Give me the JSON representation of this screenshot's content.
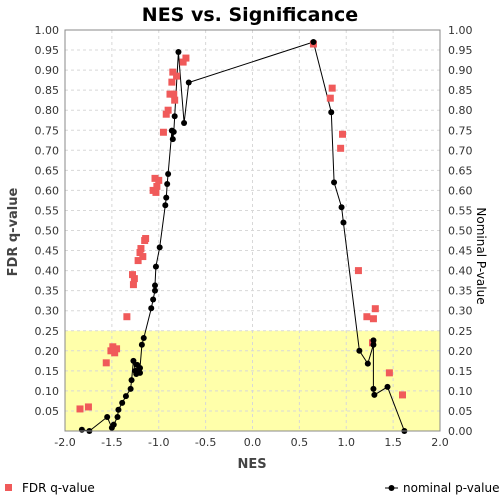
{
  "chart_data": {
    "type": "scatter",
    "title": "NES vs. Significance",
    "xlabel": "NES",
    "ylabel": "FDR q-value",
    "y2label": "Nominal P-value",
    "xlim": [
      -2.0,
      2.0
    ],
    "ylim": [
      0.0,
      1.0
    ],
    "x_ticks": [
      "-2.0",
      "-1.5",
      "-1.0",
      "-0.5",
      "0.0",
      "0.5",
      "1.0",
      "1.5",
      "2.0"
    ],
    "y_ticks": [
      "0.05",
      "0.10",
      "0.15",
      "0.20",
      "0.25",
      "0.30",
      "0.35",
      "0.40",
      "0.45",
      "0.50",
      "0.55",
      "0.60",
      "0.65",
      "0.70",
      "0.75",
      "0.80",
      "0.85",
      "0.90",
      "0.95",
      "1.00"
    ],
    "y2_ticks": [
      "0.00",
      "0.05",
      "0.10",
      "0.15",
      "0.20",
      "0.25",
      "0.30",
      "0.35",
      "0.40",
      "0.45",
      "0.50",
      "0.55",
      "0.60",
      "0.65",
      "0.70",
      "0.75",
      "0.80",
      "0.85",
      "0.90",
      "0.95",
      "1.00"
    ],
    "highlight_band": {
      "ymin": 0.0,
      "ymax": 0.25,
      "color": "#ffffaa"
    },
    "grid": true,
    "legend_position": "bottom",
    "series": [
      {
        "name": "FDR q-value",
        "color": "#f05a5a",
        "marker": "square",
        "points": [
          [
            -1.84,
            0.055
          ],
          [
            -1.75,
            0.06
          ],
          [
            -1.56,
            0.17
          ],
          [
            -1.51,
            0.2
          ],
          [
            -1.49,
            0.21
          ],
          [
            -1.47,
            0.195
          ],
          [
            -1.45,
            0.205
          ],
          [
            -1.34,
            0.285
          ],
          [
            -1.28,
            0.39
          ],
          [
            -1.27,
            0.365
          ],
          [
            -1.26,
            0.38
          ],
          [
            -1.22,
            0.425
          ],
          [
            -1.2,
            0.445
          ],
          [
            -1.19,
            0.455
          ],
          [
            -1.17,
            0.435
          ],
          [
            -1.15,
            0.475
          ],
          [
            -1.14,
            0.48
          ],
          [
            -1.06,
            0.6
          ],
          [
            -1.04,
            0.63
          ],
          [
            -1.03,
            0.595
          ],
          [
            -1.02,
            0.61
          ],
          [
            -1.0,
            0.625
          ],
          [
            -0.95,
            0.745
          ],
          [
            -0.92,
            0.79
          ],
          [
            -0.9,
            0.8
          ],
          [
            -0.88,
            0.84
          ],
          [
            -0.86,
            0.87
          ],
          [
            -0.85,
            0.895
          ],
          [
            -0.84,
            0.84
          ],
          [
            -0.83,
            0.825
          ],
          [
            -0.81,
            0.885
          ],
          [
            -0.74,
            0.92
          ],
          [
            -0.71,
            0.93
          ],
          [
            0.65,
            0.965
          ],
          [
            0.83,
            0.83
          ],
          [
            0.85,
            0.855
          ],
          [
            0.94,
            0.705
          ],
          [
            0.96,
            0.74
          ],
          [
            1.13,
            0.4
          ],
          [
            1.22,
            0.285
          ],
          [
            1.28,
            0.22
          ],
          [
            1.29,
            0.28
          ],
          [
            1.31,
            0.305
          ],
          [
            1.46,
            0.145
          ],
          [
            1.6,
            0.09
          ]
        ]
      },
      {
        "name": "nominal p-value",
        "color": "#000000",
        "marker": "circle",
        "points": [
          [
            -1.82,
            0.003
          ],
          [
            -1.74,
            0.0
          ],
          [
            -1.55,
            0.035
          ],
          [
            -1.5,
            0.008
          ],
          [
            -1.48,
            0.016
          ],
          [
            -1.44,
            0.035
          ],
          [
            -1.43,
            0.053
          ],
          [
            -1.39,
            0.07
          ],
          [
            -1.35,
            0.087
          ],
          [
            -1.3,
            0.105
          ],
          [
            -1.29,
            0.127
          ],
          [
            -1.27,
            0.175
          ],
          [
            -1.25,
            0.15
          ],
          [
            -1.24,
            0.142
          ],
          [
            -1.23,
            0.165
          ],
          [
            -1.2,
            0.145
          ],
          [
            -1.2,
            0.157
          ],
          [
            -1.18,
            0.215
          ],
          [
            -1.16,
            0.232
          ],
          [
            -1.08,
            0.306
          ],
          [
            -1.06,
            0.328
          ],
          [
            -1.04,
            0.35
          ],
          [
            -1.04,
            0.363
          ],
          [
            -1.03,
            0.41
          ],
          [
            -0.99,
            0.458
          ],
          [
            -0.93,
            0.563
          ],
          [
            -0.92,
            0.582
          ],
          [
            -0.91,
            0.616
          ],
          [
            -0.9,
            0.641
          ],
          [
            -0.86,
            0.749
          ],
          [
            -0.85,
            0.728
          ],
          [
            -0.84,
            0.746
          ],
          [
            -0.83,
            0.785
          ],
          [
            -0.79,
            0.945
          ],
          [
            -0.73,
            0.768
          ],
          [
            -0.68,
            0.869
          ],
          [
            0.65,
            0.97
          ],
          [
            0.84,
            0.795
          ],
          [
            0.87,
            0.62
          ],
          [
            0.95,
            0.558
          ],
          [
            0.97,
            0.52
          ],
          [
            1.14,
            0.2
          ],
          [
            1.23,
            0.168
          ],
          [
            1.29,
            0.215
          ],
          [
            1.29,
            0.226
          ],
          [
            1.29,
            0.105
          ],
          [
            1.3,
            0.09
          ],
          [
            1.44,
            0.11
          ],
          [
            1.62,
            0.0
          ]
        ]
      }
    ]
  }
}
